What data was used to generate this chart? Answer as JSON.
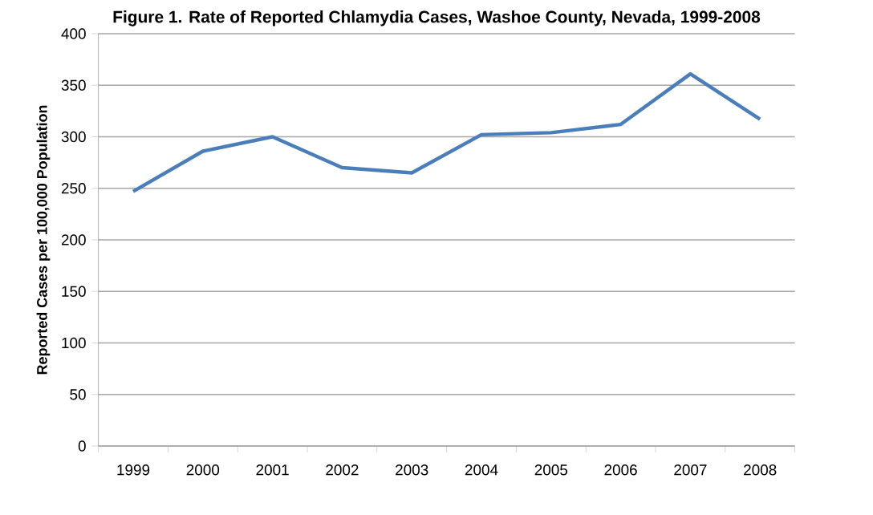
{
  "chart_data": {
    "type": "line",
    "title": "Figure 1. Rate of Reported Chlamydia Cases, Washoe County, Nevada, 1999-2008",
    "ylabel": "Reported Cases per 100,000 Population",
    "categories": [
      "1999",
      "2000",
      "2001",
      "2002",
      "2003",
      "2004",
      "2005",
      "2006",
      "2007",
      "2008"
    ],
    "series": [
      {
        "color": "#4a7ebb",
        "values": [
          247,
          286,
          300,
          270,
          265,
          302,
          304,
          312,
          361,
          317
        ]
      }
    ],
    "ylim": [
      0,
      400
    ],
    "yticks": [
      0,
      50,
      100,
      150,
      200,
      250,
      300,
      350,
      400
    ],
    "grid": "y",
    "marker": "none",
    "line_style": "solid"
  }
}
